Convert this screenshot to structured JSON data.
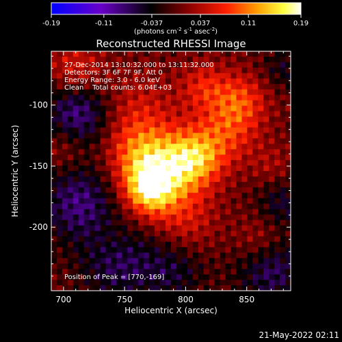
{
  "colorbar": {
    "ticks": [
      "-0.19",
      "-0.11",
      "-0.037",
      "0.037",
      "0.11",
      "0.19"
    ],
    "tick_values": [
      -0.19,
      -0.11,
      -0.037,
      0.037,
      0.11,
      0.19
    ],
    "range": [
      -0.19,
      0.19
    ],
    "units_prefix": "(photons cm",
    "units_exp1": "-2",
    "units_mid": " s",
    "units_exp2": "-1",
    "units_mid2": " asec",
    "units_exp3": "-2",
    "units_suffix": ")",
    "colormap": [
      "#0000ff",
      "#6a00c8",
      "#000000",
      "#8a0000",
      "#ff1e00",
      "#ff9a00",
      "#ffff40",
      "#ffffff"
    ]
  },
  "chart_data": {
    "type": "heatmap",
    "title": "Reconstructed RHESSI Image",
    "xlabel": "Heliocentric X (arcsec)",
    "ylabel": "Heliocentric Y (arcsec)",
    "xlim": [
      690,
      886
    ],
    "ylim": [
      -252,
      -56
    ],
    "xticks": [
      "700",
      "750",
      "800",
      "850"
    ],
    "xtick_values": [
      700,
      750,
      800,
      850
    ],
    "yticks": [
      "-100",
      "-150",
      "-200"
    ],
    "ytick_values": [
      -100,
      -150,
      -200
    ],
    "peak_position": [
      770,
      -169
    ],
    "annotations": [
      "27-Dec-2014 13:10:32.000 to 13:11:32.000",
      "Detectors: 3F 6F 7F 9F, Att 0",
      "Energy Range: 3.0 - 6.0 keV",
      "Clean    Total counts: 6.04E+03"
    ],
    "peak_label": "Position of Peak = [770,-169]"
  },
  "footer": {
    "timestamp": "21-May-2022 02:11"
  }
}
